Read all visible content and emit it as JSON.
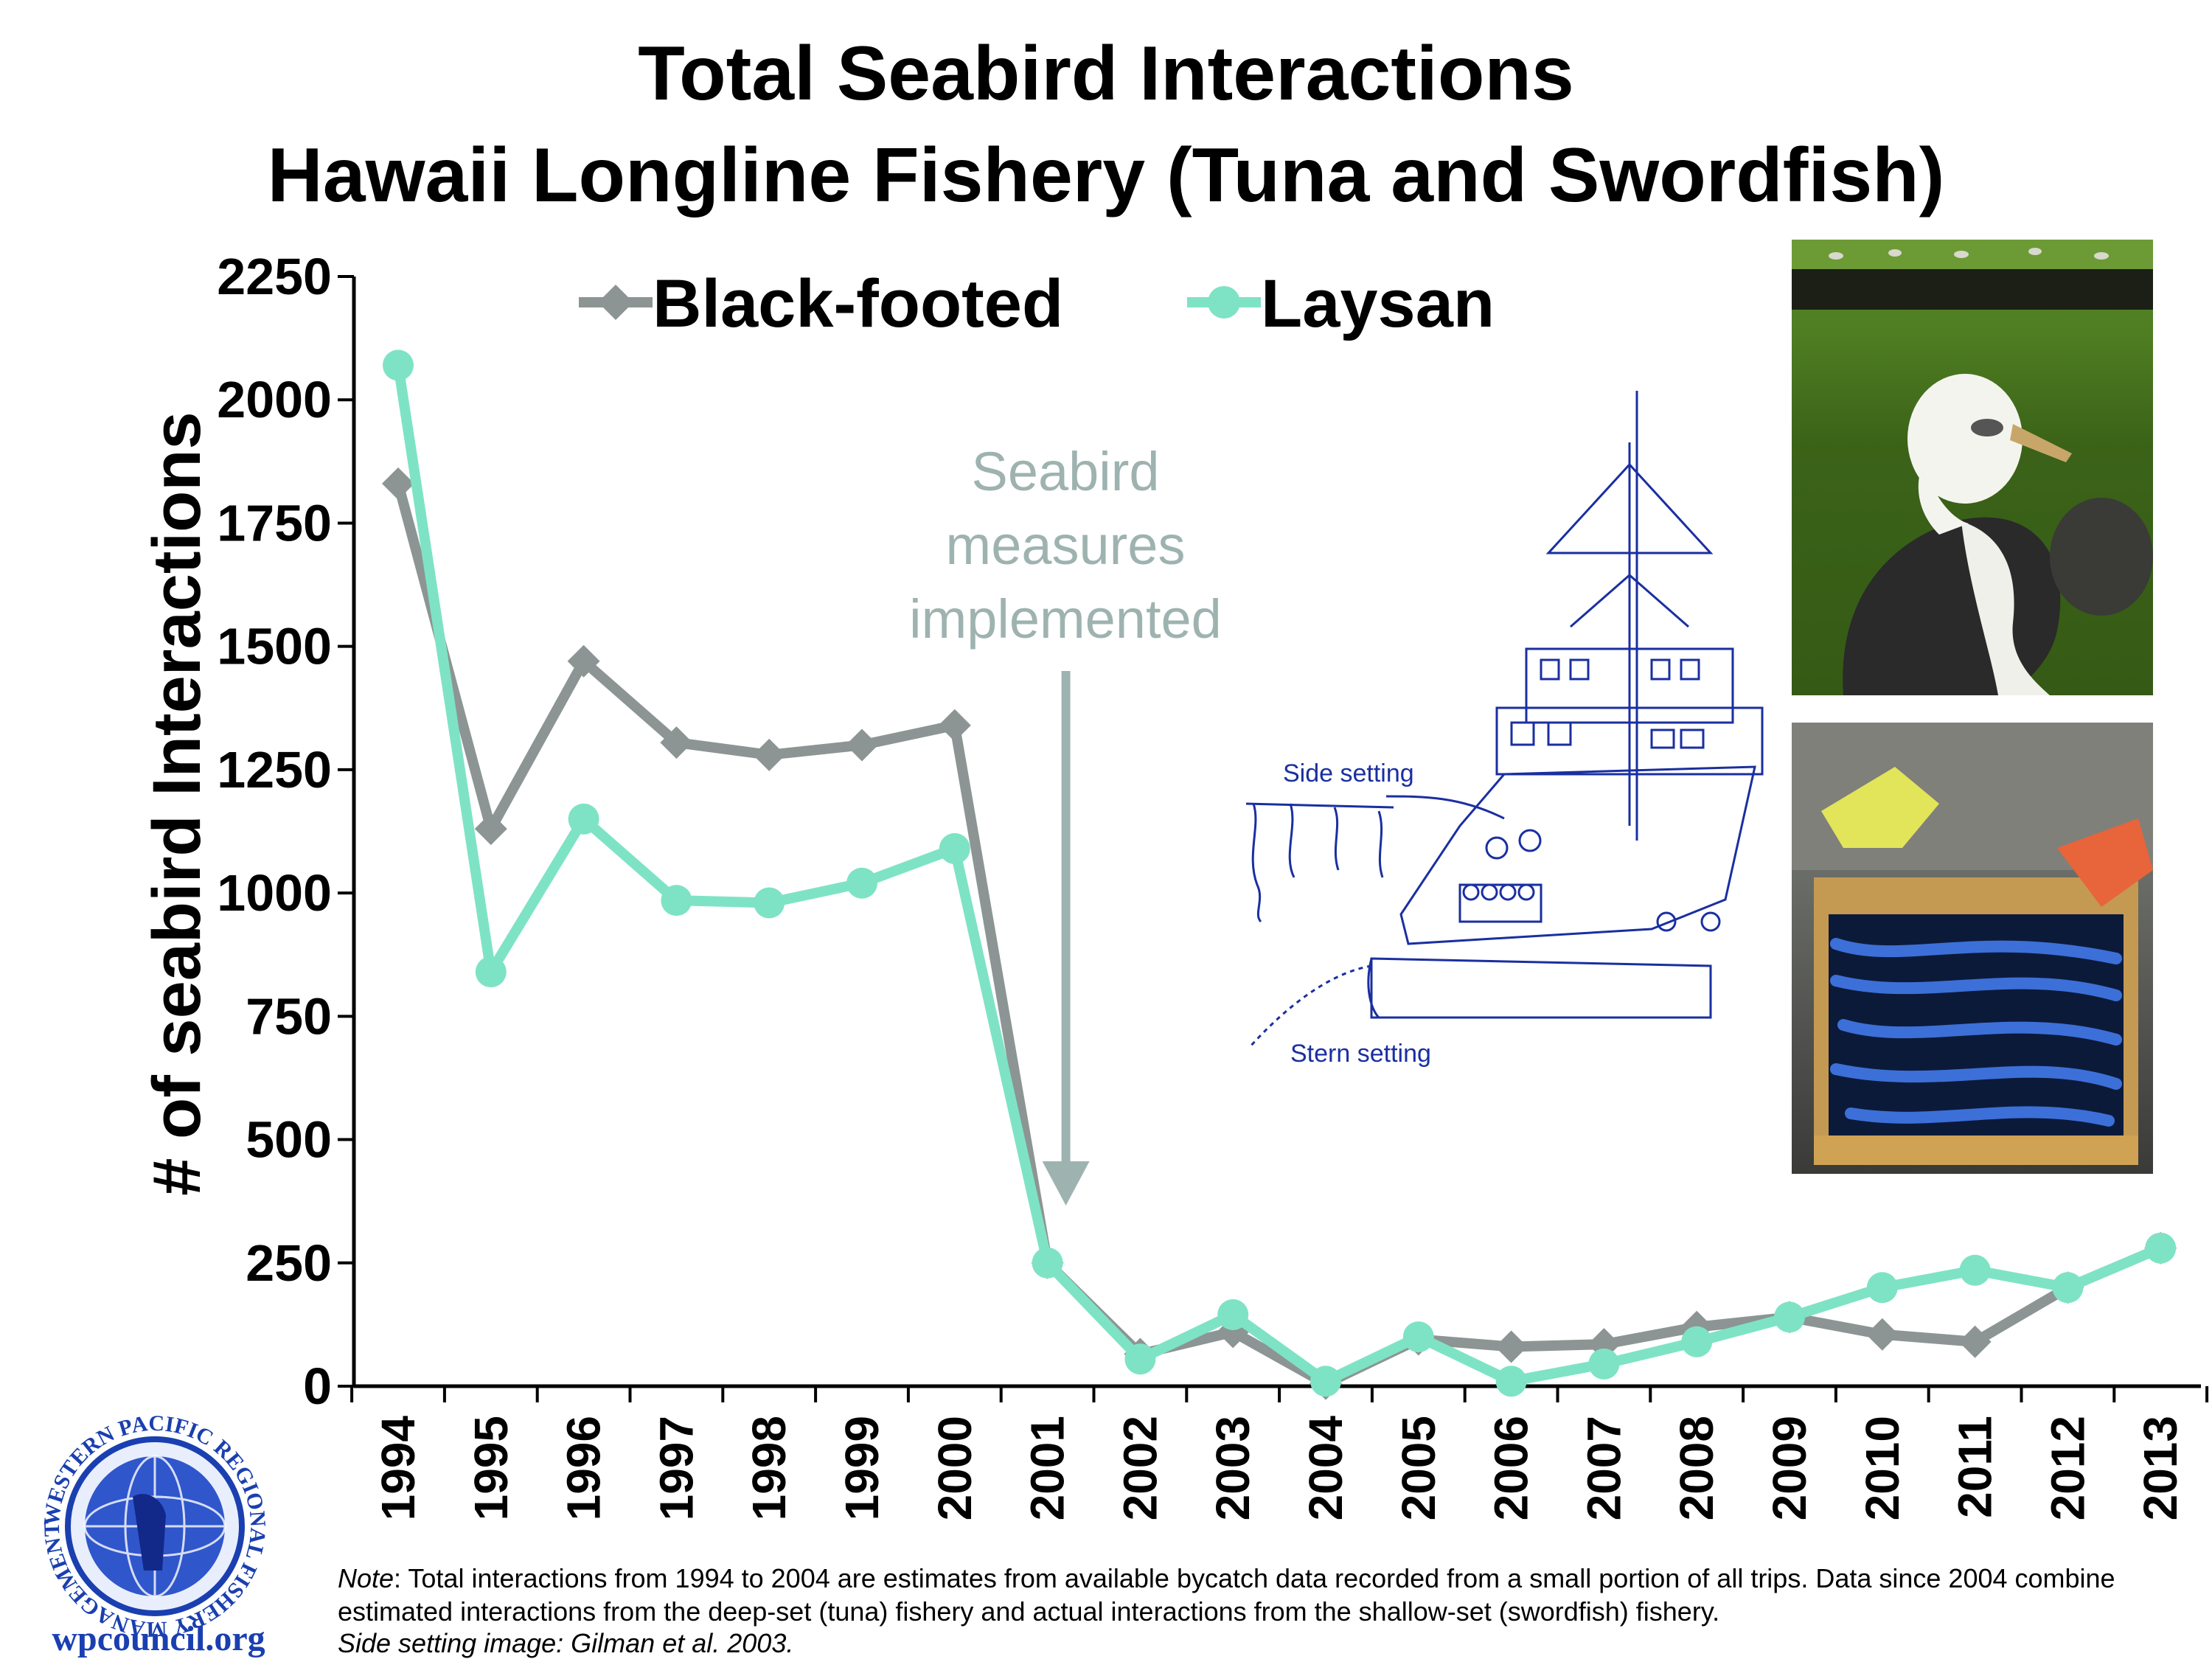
{
  "chart_data": {
    "type": "line",
    "title": "Total Seabird Interactions",
    "subtitle": "Hawaii Longline Fishery (Tuna and Swordfish)",
    "ylabel": "# of seabird Interactions",
    "xlabel": "",
    "ylim": [
      0,
      2250
    ],
    "yticks": [
      "2250",
      "2000",
      "1750",
      "1500",
      "1250",
      "1000",
      "750",
      "500",
      "250",
      "0"
    ],
    "x": [
      "1994",
      "1995",
      "1996",
      "1997",
      "1998",
      "1999",
      "2000",
      "2001",
      "2002",
      "2003",
      "2004",
      "2005",
      "2006",
      "2007",
      "2008",
      "2009",
      "2010",
      "2011",
      "2012",
      "2013"
    ],
    "legend_position": "top",
    "grid": false,
    "series": [
      {
        "name": "Black-footed",
        "color": "#8c9593",
        "marker": "diamond",
        "values": [
          1830,
          1130,
          1470,
          1305,
          1280,
          1300,
          1340,
          250,
          65,
          110,
          5,
          95,
          80,
          85,
          120,
          140,
          105,
          90,
          200,
          280
        ]
      },
      {
        "name": "Laysan",
        "color": "#7ee3c4",
        "marker": "circle",
        "values": [
          2070,
          840,
          1150,
          985,
          980,
          1020,
          1090,
          250,
          55,
          145,
          10,
          100,
          10,
          45,
          90,
          140,
          200,
          235,
          200,
          280
        ]
      }
    ],
    "annotation": {
      "lines": [
        "Seabird",
        "measures",
        "implemented"
      ],
      "x": "2001",
      "color": "#9eb3b0"
    }
  },
  "diagram_labels": {
    "side": "Side setting",
    "stern": "Stern setting"
  },
  "logo": {
    "ring_text": "WESTERN PACIFIC REGIONAL FISHERY MANAGEMENT COUNCIL",
    "site": "wpcouncil.org"
  },
  "note": {
    "prefix": "Note",
    "text": ": Total interactions from 1994 to 2004 are estimates from available bycatch data recorded from a small portion of all trips. Data since 2004 combine estimated interactions from the deep-set (tuna) fishery and actual interactions from the shallow-set (swordfish) fishery.",
    "credit": "Side setting image: Gilman et al. 2003."
  }
}
